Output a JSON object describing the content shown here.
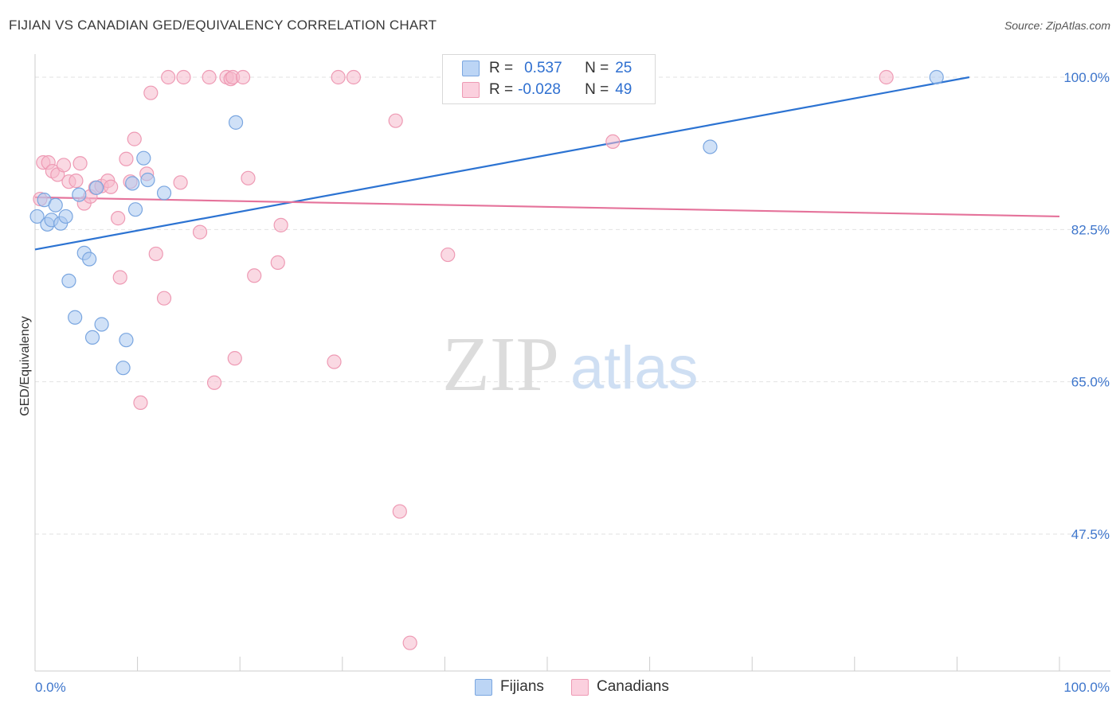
{
  "title": "FIJIAN VS CANADIAN GED/EQUIVALENCY CORRELATION CHART",
  "source": "Source: ZipAtlas.com",
  "watermark": {
    "zip": "ZIP",
    "atlas": "atlas"
  },
  "legend": {
    "rows": [
      {
        "r_label": "R =",
        "r_value": "0.537",
        "n_label": "N =",
        "n_value": "25"
      },
      {
        "r_label": "R =",
        "r_value": "-0.028",
        "n_label": "N =",
        "n_value": "49"
      }
    ]
  },
  "bottom_legend": {
    "fijians": "Fijians",
    "canadians": "Canadians"
  },
  "colors": {
    "fijian_fill": "#a9c8f0",
    "fijian_stroke": "#7aa6e0",
    "fijian_line": "#2c73d2",
    "canadian_fill": "#f6b9cc",
    "canadian_stroke": "#ee9ab4",
    "canadian_line": "#e5739b",
    "tick_label": "#3e76cc",
    "grid": "#e2e2e2"
  },
  "chart_data": {
    "type": "scatter",
    "title": "FIJIAN VS CANADIAN GED/EQUIVALENCY CORRELATION CHART",
    "xlabel": "",
    "ylabel": "GED/Equivalency",
    "xlim": [
      0,
      100
    ],
    "ylim": [
      32,
      102
    ],
    "x_tick_labels": [
      "0.0%",
      "100.0%"
    ],
    "y_ticks": [
      47.5,
      65.0,
      82.5,
      100.0
    ],
    "y_tick_labels": [
      "47.5%",
      "65.0%",
      "82.5%",
      "100.0%"
    ],
    "grid": true,
    "series": [
      {
        "name": "Fijians",
        "r": 0.537,
        "n": 25,
        "points": [
          [
            0.2,
            84.0
          ],
          [
            0.9,
            85.9
          ],
          [
            1.2,
            83.1
          ],
          [
            1.6,
            83.6
          ],
          [
            2.0,
            85.3
          ],
          [
            2.5,
            83.2
          ],
          [
            3.0,
            84.0
          ],
          [
            3.3,
            76.6
          ],
          [
            3.9,
            72.4
          ],
          [
            4.3,
            86.5
          ],
          [
            4.8,
            79.8
          ],
          [
            5.3,
            79.1
          ],
          [
            5.6,
            70.1
          ],
          [
            6.0,
            87.3
          ],
          [
            6.5,
            71.6
          ],
          [
            8.6,
            66.6
          ],
          [
            8.9,
            69.8
          ],
          [
            9.5,
            87.8
          ],
          [
            9.8,
            84.8
          ],
          [
            10.6,
            90.7
          ],
          [
            11.0,
            88.2
          ],
          [
            12.6,
            86.7
          ],
          [
            19.6,
            94.8
          ],
          [
            65.9,
            92.0
          ],
          [
            88.0,
            100.0
          ]
        ],
        "trend": {
          "x": [
            0,
            91.2
          ],
          "y": [
            80.2,
            100.0
          ]
        }
      },
      {
        "name": "Canadians",
        "r": -0.028,
        "n": 49,
        "points": [
          [
            0.5,
            86.0
          ],
          [
            0.8,
            90.2
          ],
          [
            1.3,
            90.2
          ],
          [
            1.7,
            89.2
          ],
          [
            2.2,
            88.8
          ],
          [
            2.8,
            89.9
          ],
          [
            3.3,
            88.0
          ],
          [
            4.0,
            88.1
          ],
          [
            4.4,
            90.1
          ],
          [
            4.8,
            85.5
          ],
          [
            5.4,
            86.3
          ],
          [
            5.9,
            87.3
          ],
          [
            6.5,
            87.5
          ],
          [
            7.1,
            88.1
          ],
          [
            7.4,
            87.4
          ],
          [
            8.1,
            83.8
          ],
          [
            8.3,
            77.0
          ],
          [
            8.9,
            90.6
          ],
          [
            9.3,
            88.0
          ],
          [
            9.7,
            92.9
          ],
          [
            10.3,
            62.6
          ],
          [
            10.9,
            88.9
          ],
          [
            11.3,
            98.2
          ],
          [
            11.8,
            79.7
          ],
          [
            12.6,
            74.6
          ],
          [
            13.0,
            100.0
          ],
          [
            14.2,
            87.9
          ],
          [
            14.5,
            100.0
          ],
          [
            16.1,
            82.2
          ],
          [
            17.0,
            100.0
          ],
          [
            17.5,
            64.9
          ],
          [
            18.7,
            100.0
          ],
          [
            19.1,
            99.8
          ],
          [
            19.3,
            100.0
          ],
          [
            19.5,
            67.7
          ],
          [
            20.3,
            100.0
          ],
          [
            20.8,
            88.4
          ],
          [
            21.4,
            77.2
          ],
          [
            23.7,
            78.7
          ],
          [
            24.0,
            83.0
          ],
          [
            29.2,
            67.3
          ],
          [
            29.6,
            100.0
          ],
          [
            31.1,
            100.0
          ],
          [
            35.2,
            95.0
          ],
          [
            35.6,
            50.1
          ],
          [
            36.6,
            35.0
          ],
          [
            40.3,
            79.6
          ],
          [
            56.4,
            92.6
          ],
          [
            83.1,
            100.0
          ]
        ],
        "trend": {
          "x": [
            0,
            100
          ],
          "y": [
            86.2,
            84.0
          ]
        }
      }
    ]
  }
}
